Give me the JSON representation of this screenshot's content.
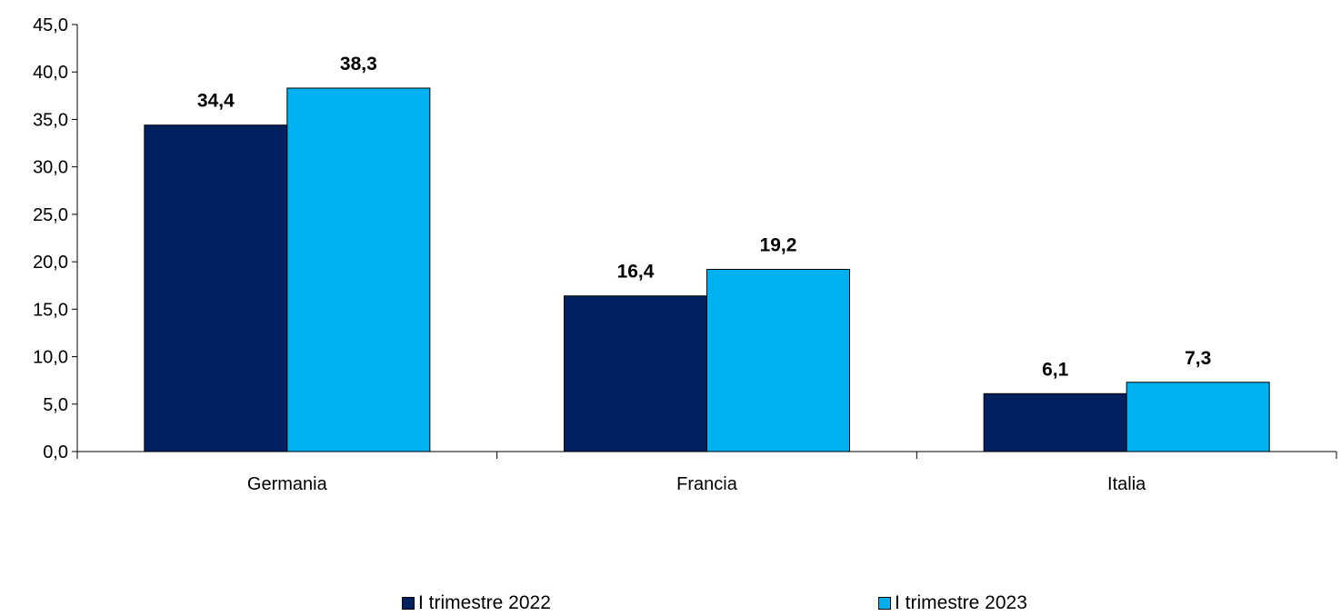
{
  "chart_data": {
    "type": "bar",
    "categories": [
      "Germania",
      "Francia",
      "Italia"
    ],
    "series": [
      {
        "name": "I trimestre 2022",
        "values": [
          34.4,
          16.4,
          6.1
        ],
        "labels": [
          "34,4",
          "16,4",
          "6,1"
        ],
        "color": "#002060"
      },
      {
        "name": "I trimestre 2023",
        "values": [
          38.3,
          19.2,
          7.3
        ],
        "labels": [
          "38,3",
          "19,2",
          "7,3"
        ],
        "color": "#00B0F0"
      }
    ],
    "yticks": [
      "0,0",
      "5,0",
      "10,0",
      "15,0",
      "20,0",
      "25,0",
      "30,0",
      "35,0",
      "40,0",
      "45,0"
    ],
    "ylim": [
      0,
      45
    ],
    "title": "",
    "xlabel": "",
    "ylabel": "",
    "grid": false,
    "legend_position": "bottom"
  }
}
